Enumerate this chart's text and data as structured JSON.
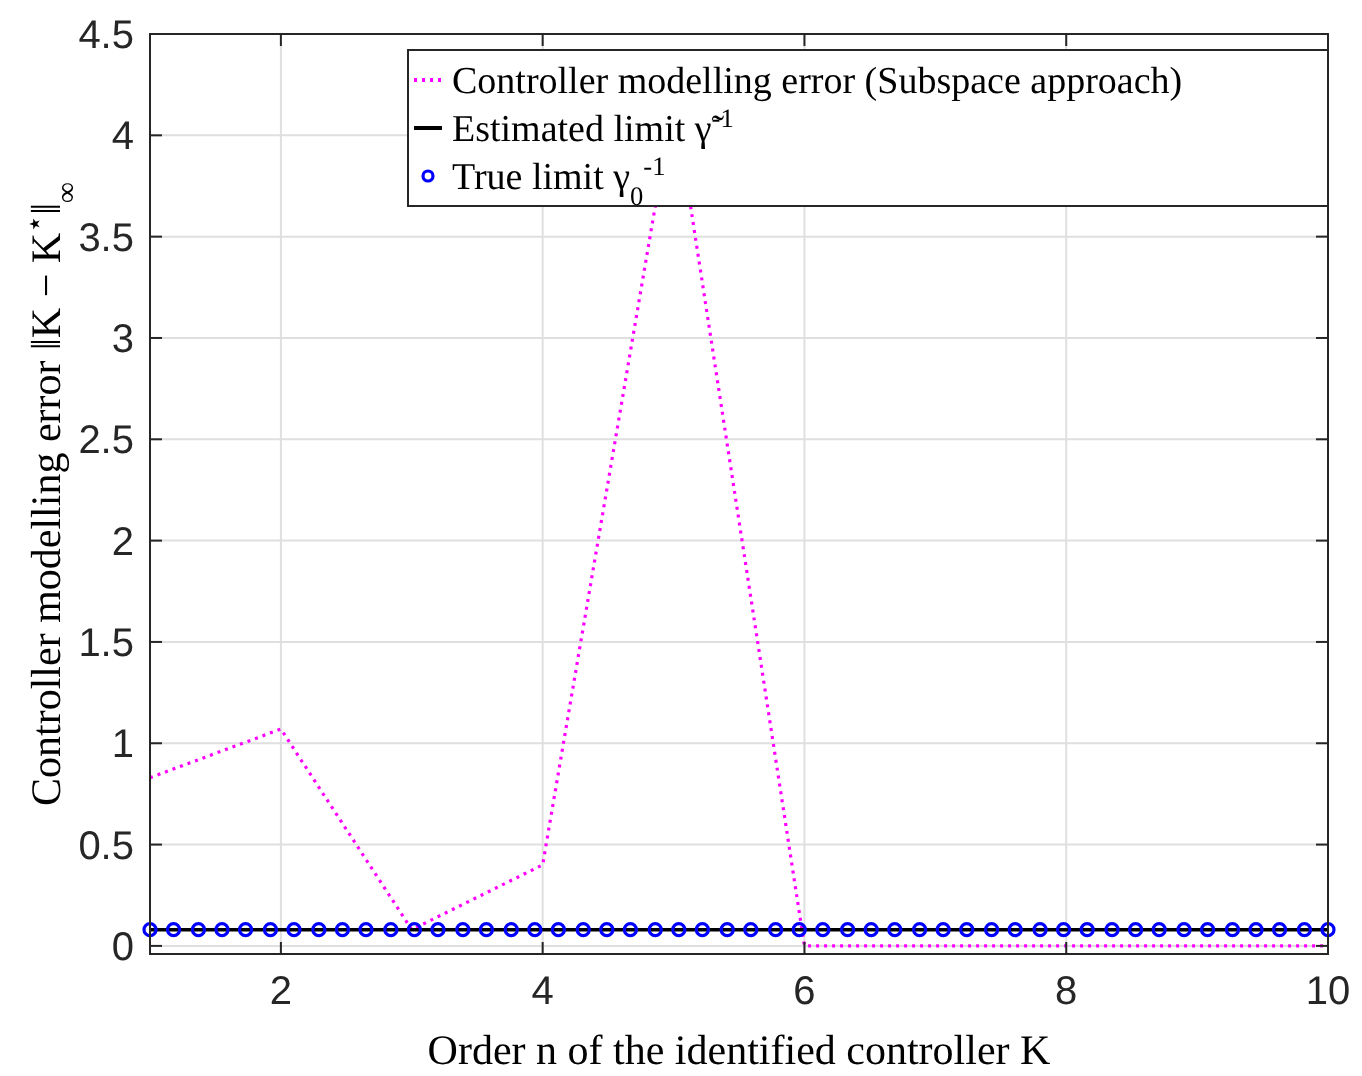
{
  "chart_data": {
    "type": "line",
    "xlabel": "Order n of the identified controller K",
    "ylabel": "Controller modelling error ‖K − K$^{⋆}$‖$_{∞}$",
    "xlim": [
      1,
      10
    ],
    "ylim": [
      -0.04,
      4.5
    ],
    "xticks": [
      2,
      4,
      6,
      8,
      10
    ],
    "yticks": [
      0,
      0.5,
      1,
      1.5,
      2,
      2.5,
      3,
      3.5,
      4,
      4.5
    ],
    "grid": true,
    "legend": "top right",
    "series": [
      {
        "name": "Controller modelling error (Subspace approach)",
        "line_style": "dotted",
        "color": "#ff00ff",
        "x": [
          1,
          2,
          3,
          4,
          4.86,
          5,
          5.13,
          6,
          7,
          8,
          9,
          10
        ],
        "values": [
          0.83,
          1.07,
          0.08,
          0.4,
          3.65,
          null,
          3.65,
          0,
          0,
          0,
          0,
          0
        ]
      },
      {
        "name": "Estimated limit γ̃$^{-1}$",
        "line_style": "solid",
        "color": "#000000",
        "x": [
          1,
          10
        ],
        "values": [
          0.08,
          0.08
        ]
      },
      {
        "name": "True limit γ$_{0}$$^{-1}$",
        "type": "scatter",
        "marker": "circle",
        "color": "#0000ff",
        "x": [
          1,
          1.18,
          1.37,
          1.55,
          1.73,
          1.92,
          2.1,
          2.29,
          2.47,
          2.65,
          2.84,
          3.02,
          3.2,
          3.39,
          3.57,
          3.76,
          3.94,
          4.12,
          4.31,
          4.49,
          4.67,
          4.86,
          5.04,
          5.22,
          5.41,
          5.59,
          5.78,
          5.96,
          6.14,
          6.33,
          6.51,
          6.69,
          6.88,
          7.06,
          7.24,
          7.43,
          7.61,
          7.8,
          7.98,
          8.16,
          8.35,
          8.53,
          8.71,
          8.9,
          9.08,
          9.27,
          9.45,
          9.63,
          9.82,
          10
        ],
        "values": [
          0.08,
          0.08,
          0.08,
          0.08,
          0.08,
          0.08,
          0.08,
          0.08,
          0.08,
          0.08,
          0.08,
          0.08,
          0.08,
          0.08,
          0.08,
          0.08,
          0.08,
          0.08,
          0.08,
          0.08,
          0.08,
          0.08,
          0.08,
          0.08,
          0.08,
          0.08,
          0.08,
          0.08,
          0.08,
          0.08,
          0.08,
          0.08,
          0.08,
          0.08,
          0.08,
          0.08,
          0.08,
          0.08,
          0.08,
          0.08,
          0.08,
          0.08,
          0.08,
          0.08,
          0.08,
          0.08,
          0.08,
          0.08,
          0.08,
          0.08
        ]
      }
    ]
  }
}
